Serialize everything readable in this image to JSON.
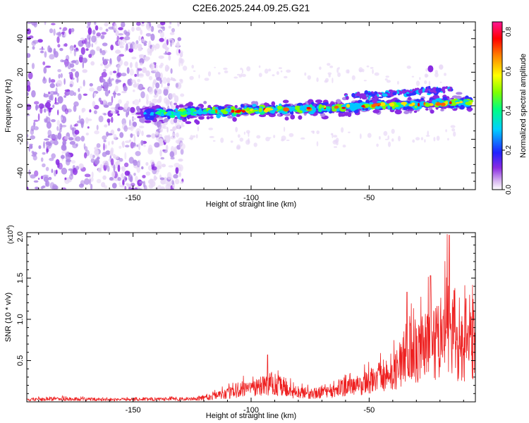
{
  "title": "C2E6.2025.244.09.25.G21",
  "colors": {
    "axis": "#000000",
    "snr_line": "#ee2020",
    "colormap": [
      "#ffffff",
      "#e8d8f6",
      "#b088e8",
      "#8a2be2",
      "#3030ff",
      "#00c8ff",
      "#00ff88",
      "#80ff00",
      "#ffe000",
      "#ff6000",
      "#ff0000",
      "#ff1493"
    ]
  },
  "chart_data": [
    {
      "type": "heatmap",
      "name": "spectrogram",
      "xlabel": "Height of straight line (km)",
      "ylabel": "Frequency (Hz)",
      "xlim": [
        -195,
        -5
      ],
      "ylim": [
        -50,
        50
      ],
      "x_ticks": [
        -150,
        -100,
        -50
      ],
      "x_tick_labels": [
        "-150",
        "-100",
        "-50"
      ],
      "y_ticks": [
        -40,
        -20,
        0,
        20,
        40
      ],
      "y_tick_labels": [
        "-40",
        "-20",
        "0",
        "20",
        "40"
      ],
      "ridge": {
        "x_start": -145,
        "x_end": -7,
        "freq_start": -5,
        "freq_end": 2,
        "upper_branch": {
          "x_start": -60,
          "x_end": -15,
          "freq_start": 5,
          "freq_end": 10
        }
      },
      "noise_region_x": [
        -195,
        -135
      ],
      "colorbar": {
        "label": "Normalized spectral amplitude",
        "range": [
          0.0,
          0.85
        ],
        "ticks": [
          0.0,
          0.2,
          0.4,
          0.6,
          0.8
        ],
        "tick_labels": [
          "0.0",
          "0.2",
          "0.4",
          "0.6",
          "0.8"
        ]
      }
    },
    {
      "type": "line",
      "name": "snr",
      "xlabel": "Height of straight line (km)",
      "ylabel": "SNR (10 * v/v)",
      "y_multiplier": "(x10",
      "y_multiplier_exp": "4",
      "y_multiplier_close": ")",
      "xlim": [
        -195,
        -5
      ],
      "ylim": [
        0,
        2.05
      ],
      "x_ticks": [
        -150,
        -100,
        -50
      ],
      "x_tick_labels": [
        "-150",
        "-100",
        "-50"
      ],
      "y_ticks": [
        0.5,
        1.0,
        1.5,
        2.0
      ],
      "y_tick_labels": [
        "0.5",
        "1.0",
        "1.5",
        "2.0"
      ],
      "envelope": {
        "x": [
          -195,
          -180,
          -160,
          -140,
          -125,
          -118,
          -110,
          -105,
          -100,
          -95,
          -92,
          -88,
          -84,
          -80,
          -75,
          -70,
          -65,
          -60,
          -55,
          -50,
          -45,
          -42,
          -38,
          -36,
          -34,
          -30,
          -26,
          -24,
          -21,
          -19,
          -17,
          -14,
          -12,
          -10,
          -8,
          -5
        ],
        "y": [
          0.04,
          0.05,
          0.04,
          0.05,
          0.05,
          0.08,
          0.14,
          0.22,
          0.2,
          0.3,
          0.32,
          0.28,
          0.2,
          0.15,
          0.14,
          0.17,
          0.2,
          0.24,
          0.28,
          0.33,
          0.4,
          0.45,
          0.55,
          0.75,
          0.85,
          0.8,
          0.95,
          1.1,
          1.05,
          1.0,
          1.4,
          1.0,
          0.85,
          0.95,
          1.0,
          1.05
        ]
      },
      "peaks": {
        "x": [
          -93,
          -34,
          -24,
          -16,
          -14,
          -9
        ],
        "y": [
          0.57,
          1.33,
          1.53,
          2.02,
          1.35,
          1.25
        ]
      }
    }
  ]
}
